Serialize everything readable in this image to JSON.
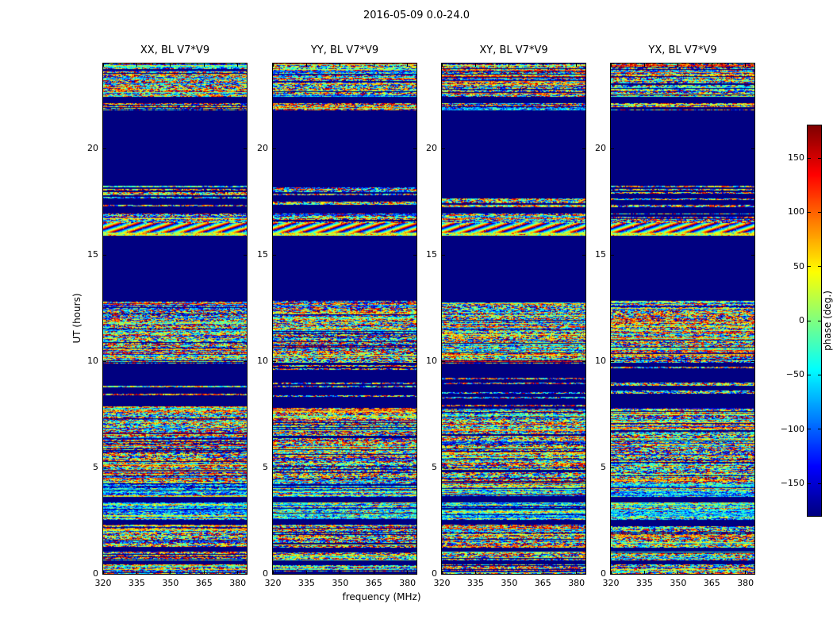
{
  "chart_data": {
    "type": "heatmap",
    "title": "2016-05-09 0.0-24.0",
    "xlabel": "frequency (MHz)",
    "ylabel": "UT (hours)",
    "x_ticks": [
      320,
      335,
      350,
      365,
      380
    ],
    "x_range": [
      320,
      384
    ],
    "y_ticks": [
      0,
      5,
      10,
      15,
      20
    ],
    "y_range": [
      0,
      24
    ],
    "grid": false,
    "background_color": "#00007f",
    "colormap": "jet",
    "panels": [
      {
        "title": "XX, BL V7*V9",
        "seed": 101
      },
      {
        "title": "YY, BL V7*V9",
        "seed": 2202
      },
      {
        "title": "XY, BL V7*V9",
        "seed": 33303
      },
      {
        "title": "YX, BL V7*V9",
        "seed": 444404
      }
    ],
    "colorbar": {
      "label": "phase (deg.)",
      "tick_values": [
        150,
        100,
        50,
        0,
        -50,
        -100,
        -150
      ],
      "tick_labels": [
        "150",
        "100",
        "50",
        "0",
        "−50",
        "−100",
        "−150"
      ],
      "range": [
        -180,
        180
      ],
      "position": "right"
    },
    "bands": [
      {
        "from": 0.0,
        "to": 0.45,
        "type": "noise"
      },
      {
        "from": 0.45,
        "to": 0.62,
        "type": "solid"
      },
      {
        "from": 0.62,
        "to": 1.05,
        "type": "noise"
      },
      {
        "from": 1.05,
        "to": 1.22,
        "type": "solid"
      },
      {
        "from": 1.22,
        "to": 2.32,
        "type": "noise"
      },
      {
        "from": 2.32,
        "to": 2.55,
        "type": "solid"
      },
      {
        "from": 2.55,
        "to": 3.35,
        "type": "cyan"
      },
      {
        "from": 3.35,
        "to": 3.62,
        "type": "solid"
      },
      {
        "from": 3.62,
        "to": 4.25,
        "type": "cyan"
      },
      {
        "from": 4.25,
        "to": 7.8,
        "type": "noise"
      },
      {
        "from": 7.8,
        "to": 9.9,
        "type": "sparse",
        "density": 0.22
      },
      {
        "from": 9.9,
        "to": 12.85,
        "type": "noise"
      },
      {
        "from": 12.85,
        "to": 15.9,
        "type": "solid"
      },
      {
        "from": 15.9,
        "to": 16.05,
        "type": "tone",
        "bias": 30
      },
      {
        "from": 16.05,
        "to": 16.5,
        "type": "fringe"
      },
      {
        "from": 16.5,
        "to": 16.95,
        "type": "noise"
      },
      {
        "from": 16.95,
        "to": 17.25,
        "type": "solid"
      },
      {
        "from": 17.25,
        "to": 18.25,
        "type": "sparse",
        "density": 0.5
      },
      {
        "from": 18.25,
        "to": 21.8,
        "type": "solid"
      },
      {
        "from": 21.8,
        "to": 22.15,
        "type": "noise"
      },
      {
        "from": 22.15,
        "to": 22.45,
        "type": "solid"
      },
      {
        "from": 22.45,
        "to": 24.1,
        "type": "noise"
      }
    ]
  }
}
